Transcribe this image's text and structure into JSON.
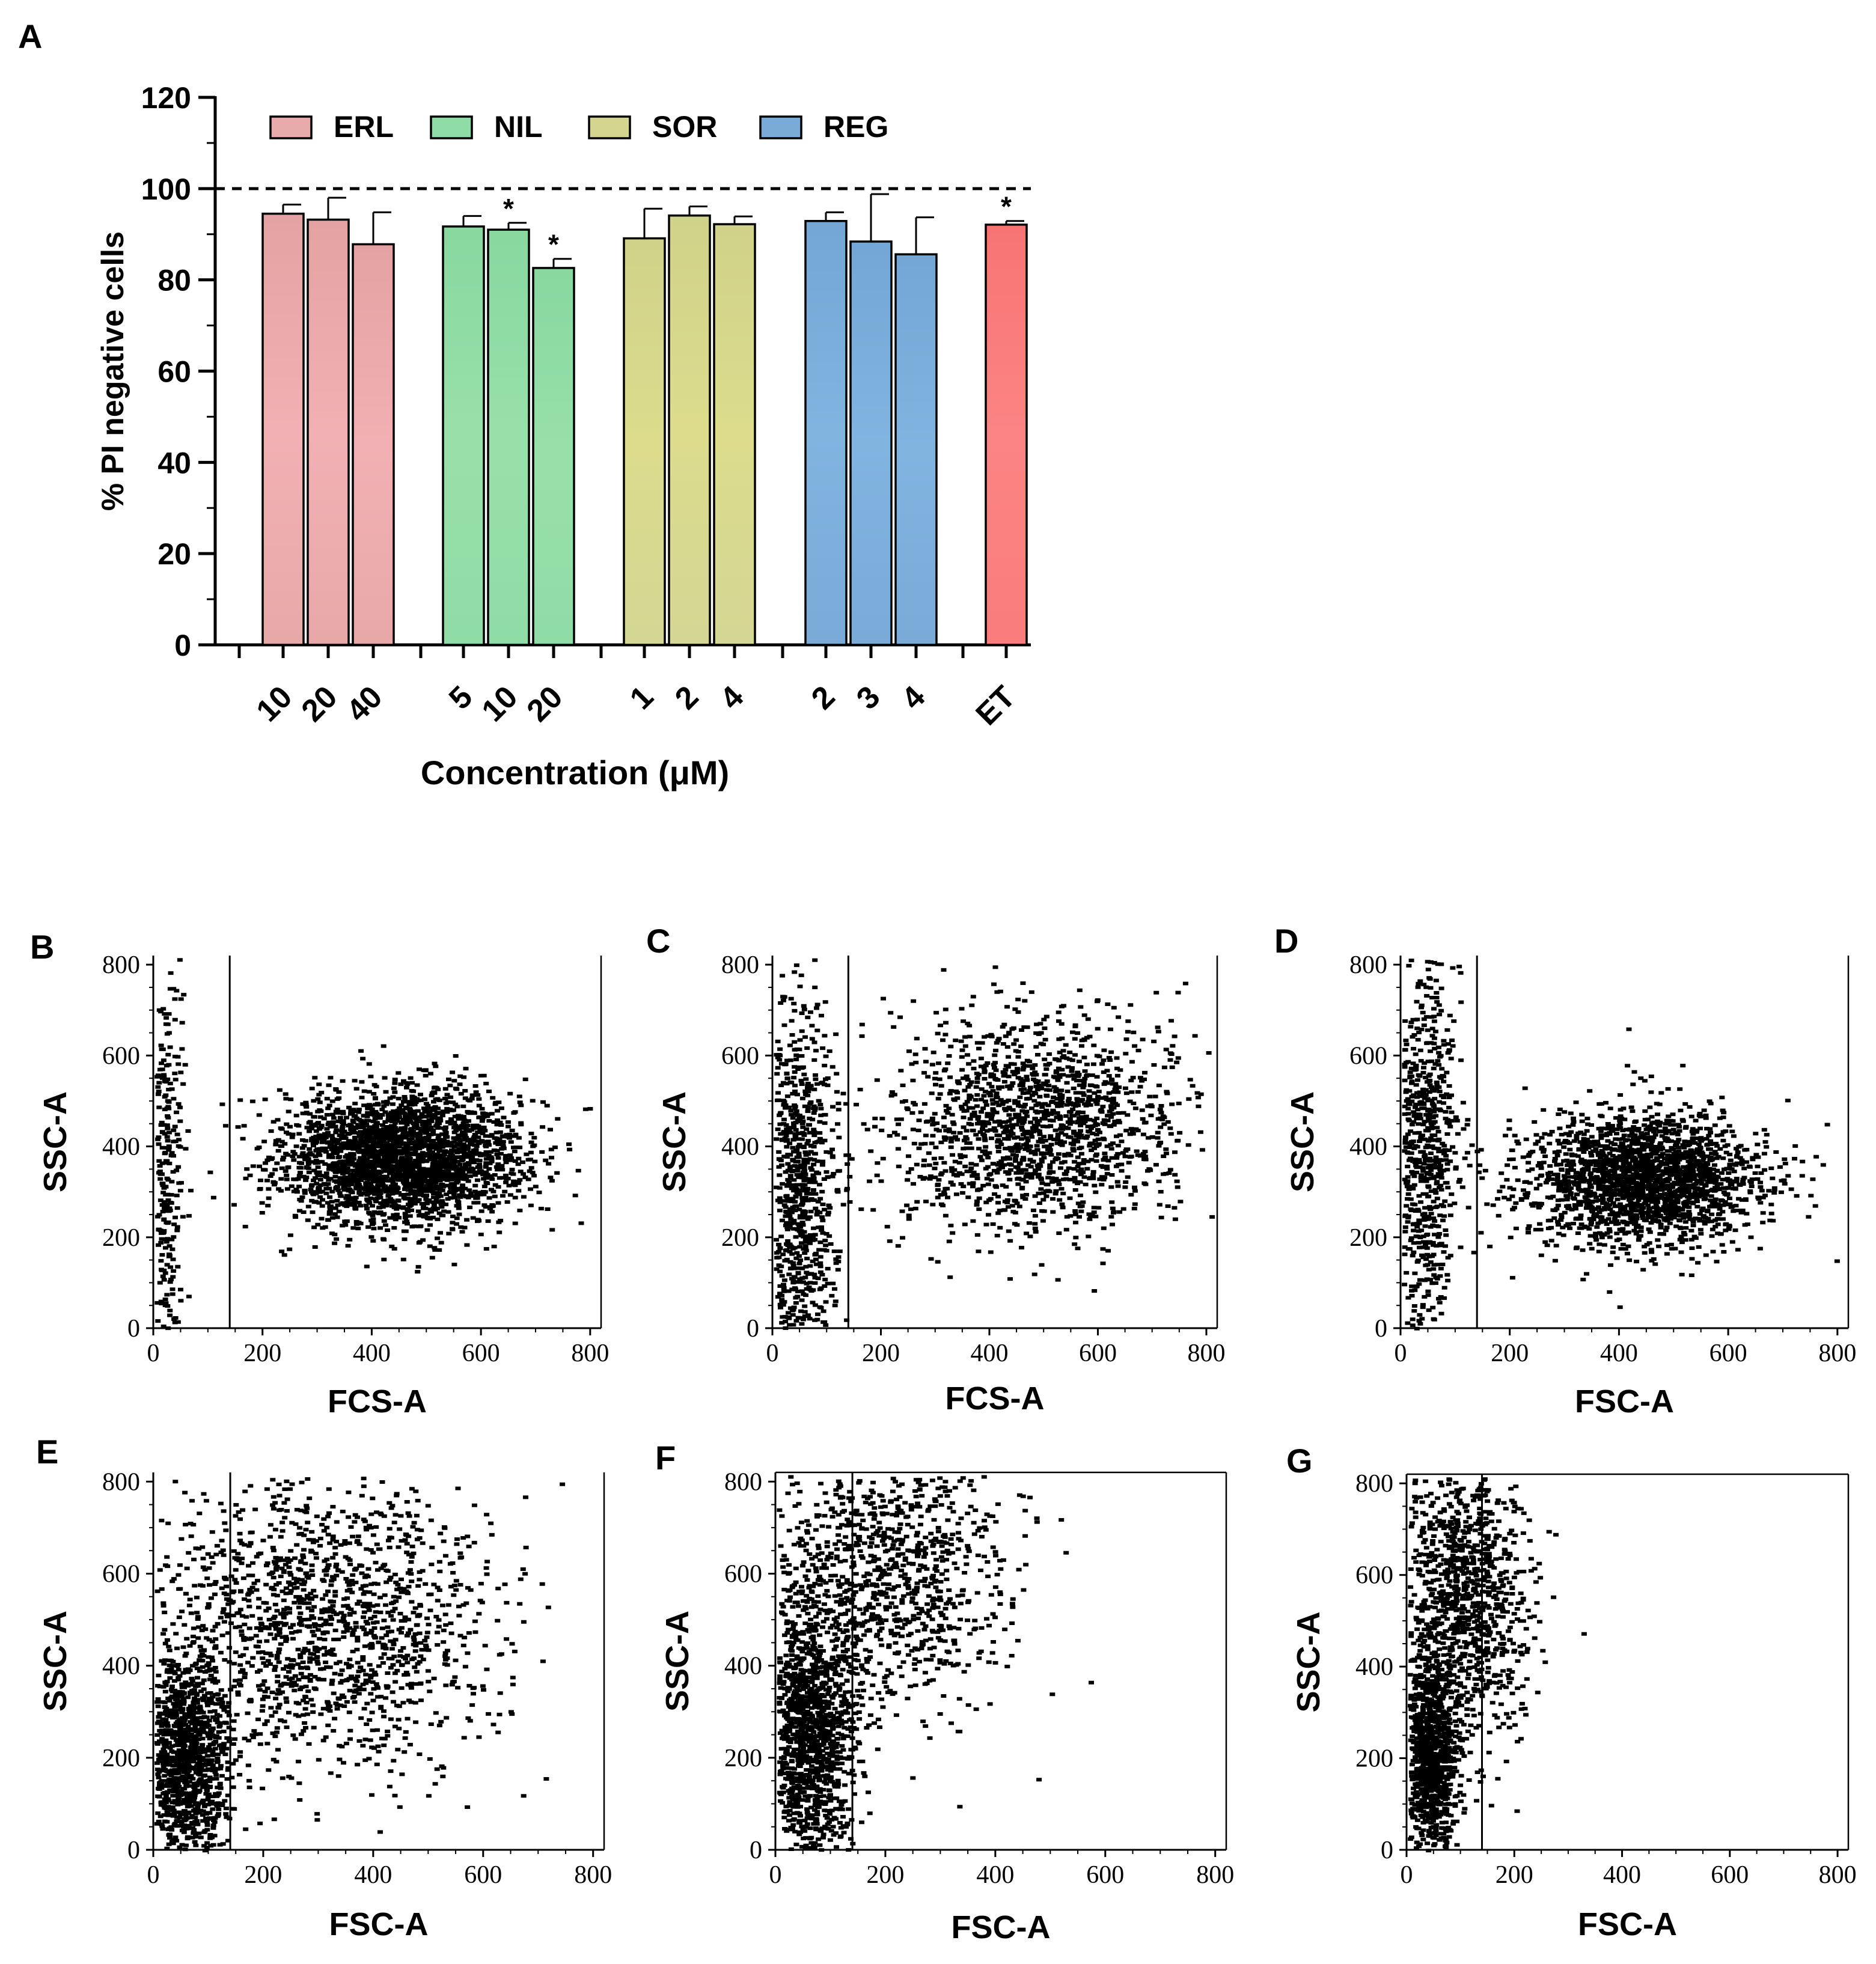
{
  "panel_labels": {
    "a": "A",
    "b": "B",
    "c": "C",
    "d": "D",
    "e": "E",
    "f": "F",
    "g": "G"
  },
  "colors": {
    "ERL": "#e8aaaa",
    "NIL": "#90dca6",
    "SOR": "#d4d690",
    "REG": "#7aaad8",
    "ET": "#fa7c7c"
  },
  "chart_data": [
    {
      "id": "A",
      "type": "bar",
      "title": "",
      "xlabel": "Concentration (μM)",
      "ylabel": "% PI negative cells",
      "ylim": [
        0,
        120
      ],
      "yticks": [
        "0",
        "20",
        "40",
        "60",
        "80",
        "100",
        "120"
      ],
      "reference_line": 100,
      "legend": [
        "ERL",
        "NIL",
        "SOR",
        "REG"
      ],
      "groups": [
        {
          "name": "ERL",
          "categories": [
            "10",
            "20",
            "40"
          ],
          "values": [
            94.5,
            93.2,
            87.8
          ],
          "errors": [
            2.0,
            4.8,
            7.0
          ],
          "significant": [
            "",
            "",
            ""
          ]
        },
        {
          "name": "NIL",
          "categories": [
            "5",
            "10",
            "20"
          ],
          "values": [
            91.7,
            91.0,
            82.6
          ],
          "errors": [
            2.3,
            1.5,
            2.0
          ],
          "significant": [
            "",
            "*",
            "*"
          ]
        },
        {
          "name": "SOR",
          "categories": [
            "1",
            "2",
            "4"
          ],
          "values": [
            89.1,
            94.1,
            92.2
          ],
          "errors": [
            6.5,
            2.0,
            1.7
          ],
          "significant": [
            "",
            "",
            ""
          ]
        },
        {
          "name": "REG",
          "categories": [
            "2",
            "3",
            "4"
          ],
          "values": [
            92.9,
            88.4,
            85.6
          ],
          "errors": [
            1.9,
            10.4,
            8.1
          ],
          "significant": [
            "",
            "",
            ""
          ]
        },
        {
          "name": "ET",
          "categories": [
            "ET"
          ],
          "values": [
            92.1
          ],
          "errors": [
            0.8
          ],
          "significant": [
            "*"
          ]
        }
      ]
    },
    {
      "id": "B",
      "type": "scatter",
      "xlabel": "FCS-A",
      "ylabel": "SSC-A",
      "xlim": [
        0,
        820
      ],
      "ylim": [
        0,
        820
      ],
      "xticks": [
        "0",
        "200",
        "400",
        "600",
        "800"
      ],
      "yticks": [
        "0",
        "200",
        "400",
        "600",
        "800"
      ],
      "gate_x": 140,
      "clusters": [
        {
          "cx": 450,
          "cy": 380,
          "sx": 110,
          "sy": 75,
          "n": 2600
        },
        {
          "cx": 20,
          "cy": 350,
          "sx": 15,
          "sy": 230,
          "n": 300
        }
      ]
    },
    {
      "id": "C",
      "type": "scatter",
      "xlabel": "FCS-A",
      "ylabel": "SSC-A",
      "xlim": [
        0,
        820
      ],
      "ylim": [
        0,
        820
      ],
      "xticks": [
        "0",
        "200",
        "400",
        "600",
        "800"
      ],
      "yticks": [
        "0",
        "200",
        "400",
        "600",
        "800"
      ],
      "gate_x": 140,
      "clusters": [
        {
          "cx": 480,
          "cy": 450,
          "sx": 130,
          "sy": 120,
          "n": 1500
        },
        {
          "cx": 40,
          "cy": 300,
          "sx": 35,
          "sy": 220,
          "n": 900
        }
      ]
    },
    {
      "id": "D",
      "type": "scatter",
      "xlabel": "FSC-A",
      "ylabel": "SSC-A",
      "xlim": [
        0,
        820
      ],
      "ylim": [
        0,
        820
      ],
      "xticks": [
        "0",
        "200",
        "400",
        "600",
        "800"
      ],
      "yticks": [
        "0",
        "200",
        "400",
        "600",
        "800"
      ],
      "gate_x": 140,
      "clusters": [
        {
          "cx": 440,
          "cy": 330,
          "sx": 110,
          "sy": 75,
          "n": 2000
        },
        {
          "cx": 40,
          "cy": 400,
          "sx": 30,
          "sy": 220,
          "n": 700
        }
      ]
    },
    {
      "id": "E",
      "type": "scatter",
      "xlabel": "FSC-A",
      "ylabel": "SSC-A",
      "xlim": [
        0,
        820
      ],
      "ylim": [
        0,
        820
      ],
      "xticks": [
        "0",
        "200",
        "400",
        "600",
        "800"
      ],
      "yticks": [
        "0",
        "200",
        "400",
        "600",
        "800"
      ],
      "gate_x": 140,
      "clusters": [
        {
          "cx": 300,
          "cy": 500,
          "sx": 150,
          "sy": 160,
          "n": 1500
        },
        {
          "cx": 50,
          "cy": 200,
          "sx": 40,
          "sy": 110,
          "n": 1200
        }
      ]
    },
    {
      "id": "F",
      "type": "scatter",
      "xlabel": "FSC-A",
      "ylabel": "SSC-A",
      "xlim": [
        0,
        820
      ],
      "ylim": [
        0,
        820
      ],
      "xticks": [
        "0",
        "200",
        "400",
        "600",
        "800"
      ],
      "yticks": [
        "0",
        "200",
        "400",
        "600",
        "800"
      ],
      "gate_x": 140,
      "clusters": [
        {
          "cx": 200,
          "cy": 600,
          "sx": 110,
          "sy": 150,
          "n": 1000
        },
        {
          "cx": 60,
          "cy": 260,
          "sx": 40,
          "sy": 150,
          "n": 1300
        }
      ]
    },
    {
      "id": "G",
      "type": "scatter",
      "xlabel": "FSC-A",
      "ylabel": "SSC-A",
      "xlim": [
        0,
        820
      ],
      "ylim": [
        0,
        820
      ],
      "xticks": [
        "0",
        "200",
        "400",
        "600",
        "800"
      ],
      "yticks": [
        "0",
        "200",
        "400",
        "600",
        "800"
      ],
      "gate_x": 140,
      "clusters": [
        {
          "cx": 100,
          "cy": 550,
          "sx": 60,
          "sy": 170,
          "n": 1100
        },
        {
          "cx": 40,
          "cy": 200,
          "sx": 25,
          "sy": 110,
          "n": 1000
        }
      ]
    }
  ]
}
